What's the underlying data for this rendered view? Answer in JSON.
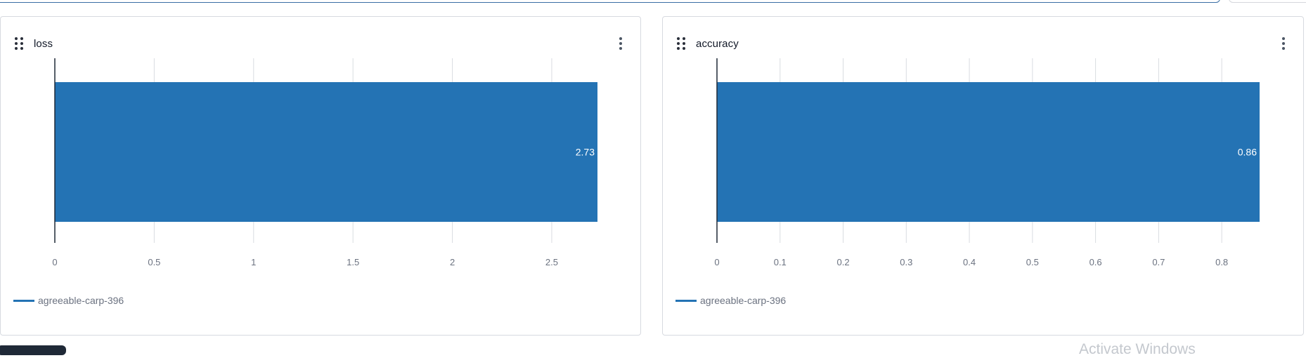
{
  "colors": {
    "bar": "#2473b4",
    "grid": "#d9dce1",
    "axis": "#1f2937",
    "tick_text": "#6b7280"
  },
  "panels": [
    {
      "title": "loss",
      "legend": "agreeable-carp-396",
      "chart_data": {
        "type": "bar",
        "orientation": "horizontal",
        "categories": [
          "agreeable-carp-396"
        ],
        "values": [
          2.73
        ],
        "data_labels": [
          "2.73"
        ],
        "xlim": [
          0,
          2.73
        ],
        "xticks": [
          0,
          0.5,
          1,
          1.5,
          2,
          2.5
        ],
        "xtick_labels": [
          "0",
          "0.5",
          "1",
          "1.5",
          "2",
          "2.5"
        ],
        "grid": true,
        "legend_position": "bottom-left"
      }
    },
    {
      "title": "accuracy",
      "legend": "agreeable-carp-396",
      "chart_data": {
        "type": "bar",
        "orientation": "horizontal",
        "categories": [
          "agreeable-carp-396"
        ],
        "values": [
          0.86
        ],
        "data_labels": [
          "0.86"
        ],
        "xlim": [
          0,
          0.86
        ],
        "xticks": [
          0,
          0.1,
          0.2,
          0.3,
          0.4,
          0.5,
          0.6,
          0.7,
          0.8
        ],
        "xtick_labels": [
          "0",
          "0.1",
          "0.2",
          "0.3",
          "0.4",
          "0.5",
          "0.6",
          "0.7",
          "0.8"
        ],
        "grid": true,
        "legend_position": "bottom-left"
      }
    }
  ],
  "watermark_text": "Activate Windows"
}
